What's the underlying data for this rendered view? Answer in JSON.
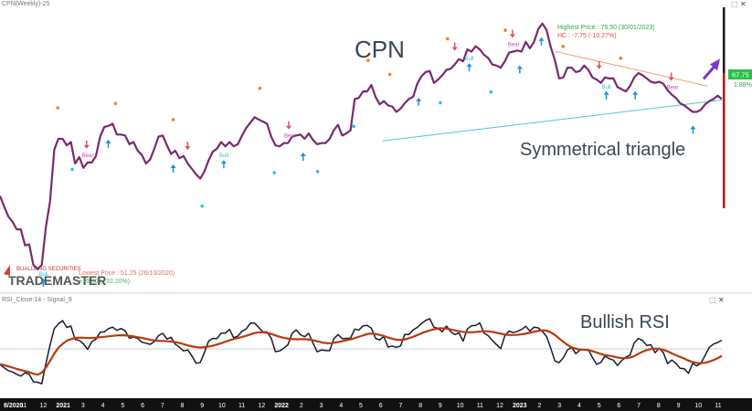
{
  "header": {
    "price_pane_title": "CPN(Weekly)-25",
    "rsi_pane_title": "RSI_Close:14 - Signal_9",
    "price_pane_icons": [
      "maximize-icon",
      "close-icon"
    ],
    "rsi_pane_icons": [
      "maximize-icon",
      "close-icon"
    ]
  },
  "annotations": {
    "ticker": "CPN",
    "pattern": "Symmetrical triangle",
    "rsi_note": "Bullish RSI",
    "highest_price": "Highest Price : 75.50 (30/01/2023)",
    "hc_change": "HC : -7.75 (-10.27%)",
    "lowest_price": "Lowest Price : 51.25 (26/10/2020)",
    "lowest_change": "+16.50 (+32.20%)",
    "current_price": "67.75",
    "current_change": "1.88%",
    "bull_label": "Bull",
    "bear_label": "Bear"
  },
  "watermark": {
    "company": "BUALUANG SECURITIES",
    "product": "TRADEMASTER"
  },
  "colors": {
    "price_line": "#7a2a6b",
    "rsi_line": "#1a1a2e",
    "signal_line": "#b83a0a",
    "support_line": "#4fc3e0",
    "resistance_line": "#f0a070",
    "bull_arrow": "#1e90d8",
    "bear_arrow": "#e05060",
    "bull_dot": "#30c0e0",
    "bear_dot": "#f08030",
    "breakout_arrow": "#7a35c8",
    "last_price_badge": "#2bbf4a",
    "axis_bar": "#111111",
    "right_scale_up": "#1a1a1a",
    "right_scale_down": "#c01010"
  },
  "chart_data": [
    {
      "type": "line",
      "pane": "price",
      "series": [
        {
          "name": "CPN",
          "values": [
            58.5,
            57.5,
            56.6,
            56.1,
            55.4,
            55.4,
            53.9,
            54.0,
            52.1,
            51.7,
            52.1,
            55.6,
            58.0,
            62.8,
            63.8,
            63.8,
            63.2,
            63.5,
            61.5,
            62.1,
            61.1,
            61.6,
            61.6,
            62.2,
            64.0,
            64.9,
            65.0,
            65.2,
            64.2,
            64.2,
            64.1,
            63.3,
            63.5,
            62.7,
            62.3,
            61.5,
            61.9,
            62.9,
            64.0,
            64.1,
            63.2,
            62.4,
            62.7,
            62.0,
            62.2,
            61.5,
            61.0,
            60.5,
            60.1,
            60.8,
            61.8,
            62.6,
            62.9,
            63.5,
            63.1,
            63.5,
            63.1,
            63.3,
            64.1,
            64.8,
            65.3,
            65.8,
            65.6,
            65.4,
            65.2,
            64.0,
            63.2,
            63.1,
            63.4,
            63.4,
            64.0,
            64.1,
            64.2,
            63.8,
            64.3,
            63.7,
            63.3,
            63.4,
            63.4,
            63.8,
            64.6,
            65.1,
            64.1,
            64.3,
            64.6,
            67.5,
            67.6,
            68.2,
            68.2,
            68.8,
            67.7,
            67.0,
            67.3,
            66.9,
            66.8,
            66.3,
            66.6,
            67.1,
            67.5,
            67.7,
            68.9,
            69.6,
            70.0,
            70.1,
            69.0,
            69.3,
            69.7,
            70.2,
            70.3,
            70.7,
            71.2,
            71.0,
            72.1,
            71.9,
            72.4,
            72.1,
            71.6,
            71.3,
            70.7,
            70.6,
            70.4,
            71.0,
            71.8,
            71.9,
            72.0,
            71.9,
            72.8,
            72.2,
            72.8,
            74.0,
            74.5,
            73.9,
            72.3,
            71.1,
            69.4,
            69.5,
            70.4,
            70.4,
            70.0,
            70.1,
            70.6,
            70.2,
            69.5,
            69.3,
            69.0,
            69.5,
            69.4,
            69.4,
            68.6,
            68.4,
            68.2,
            68.7,
            69.5,
            69.9,
            69.7,
            69.4,
            69.1,
            69.0,
            69.1,
            68.9,
            68.3,
            67.9,
            67.6,
            67.1,
            66.9,
            66.6,
            66.3,
            66.3,
            66.5,
            67.0,
            67.3,
            67.5,
            67.8,
            67.5
          ],
          "min": 51.25,
          "max": 75.5
        }
      ],
      "trendlines": [
        {
          "name": "support",
          "from": 0.53,
          "to": 1.0,
          "start": 63.6,
          "end": 67.4
        },
        {
          "name": "resistance",
          "from": 0.77,
          "to": 0.98,
          "start": 71.9,
          "end": 68.7
        }
      ],
      "x_ticks": [
        "8/2020",
        "11",
        "12",
        "2021",
        "3",
        "4",
        "5",
        "6",
        "7",
        "8",
        "9",
        "10",
        "11",
        "12",
        "2022",
        "2",
        "3",
        "4",
        "5",
        "6",
        "7",
        "8",
        "9",
        "10",
        "11",
        "12",
        "2023",
        "2",
        "3",
        "4",
        "5",
        "6",
        "7",
        "8",
        "9",
        "10",
        "11"
      ]
    },
    {
      "type": "line",
      "pane": "rsi",
      "ylim": [
        20,
        80
      ],
      "series": [
        {
          "name": "RSI",
          "values": [
            39.7,
            37.6,
            35.7,
            34.8,
            33.3,
            32.1,
            34.3,
            33.4,
            28.4,
            28.1,
            27.1,
            40.3,
            52.6,
            63.4,
            66.4,
            68.6,
            64.1,
            65.0,
            56.2,
            55.6,
            53.3,
            49.7,
            54.8,
            56.4,
            60.9,
            61.2,
            63.3,
            64.3,
            62.2,
            63.4,
            61.9,
            57.0,
            57.8,
            56.9,
            54.4,
            53.7,
            53.0,
            54.8,
            58.7,
            60.2,
            56.5,
            57.6,
            53.1,
            51.1,
            48.7,
            49.3,
            45.3,
            40.5,
            41.1,
            47.8,
            55.1,
            56.9,
            56.8,
            60.3,
            60.4,
            62.8,
            57.3,
            58.4,
            61.6,
            63.1,
            66.9,
            67.0,
            64.1,
            61.2,
            61.1,
            57.0,
            48.2,
            48.6,
            50.4,
            52.7,
            60.2,
            62.5,
            59.3,
            58.0,
            60.2,
            53.9,
            48.1,
            49.2,
            48.9,
            48.8,
            56.6,
            59.4,
            56.8,
            56.9,
            57.0,
            63.0,
            62.4,
            65.1,
            65.5,
            63.7,
            56.9,
            55.9,
            58.1,
            51.2,
            51.9,
            51.0,
            51.9,
            59.4,
            59.5,
            62.4,
            64.1,
            66.6,
            68.7,
            69.8,
            64.2,
            63.5,
            61.2,
            65.0,
            61.4,
            59.4,
            60.5,
            55.1,
            63.1,
            65.2,
            65.4,
            67.1,
            60.4,
            58.7,
            55.6,
            52.8,
            50.2,
            58.6,
            61.7,
            60.7,
            61.5,
            62.8,
            64.9,
            61.7,
            64.3,
            63.8,
            61.5,
            58.1,
            50.4,
            42.0,
            41.0,
            44.1,
            49.3,
            51.0,
            46.9,
            49.2,
            49.5,
            49.5,
            44.3,
            39.8,
            41.2,
            45.3,
            43.6,
            42.6,
            39.1,
            42.3,
            44.6,
            46.0,
            53.9,
            56.9,
            55.5,
            52.3,
            52.7,
            47.5,
            50.5,
            47.4,
            40.3,
            42.7,
            40.5,
            37.2,
            36.9,
            34.0,
            40.4,
            38.9,
            40.6,
            45.8,
            51.0,
            53.2,
            54.2,
            55.7
          ]
        },
        {
          "name": "Signal",
          "values": [
            40.0,
            39.3,
            38.5,
            37.7,
            36.8,
            36.1,
            35.4,
            34.7,
            33.6,
            33.1,
            34.4,
            38.0,
            42.4,
            47.2,
            51.0,
            53.5,
            55.5,
            56.5,
            57.2,
            57.4,
            57.3,
            57.1,
            57.2,
            57.4,
            57.7,
            58.0,
            58.3,
            58.6,
            58.9,
            59.0,
            58.8,
            58.5,
            58.1,
            57.6,
            57.1,
            56.5,
            55.9,
            55.5,
            55.3,
            55.2,
            55.0,
            54.7,
            54.3,
            53.7,
            52.9,
            52.1,
            51.5,
            51.1,
            50.9,
            51.2,
            51.7,
            52.3,
            53.1,
            54.0,
            55.0,
            55.9,
            56.7,
            57.3,
            58.1,
            58.9,
            59.9,
            60.6,
            60.9,
            60.8,
            60.3,
            59.5,
            58.5,
            57.7,
            57.0,
            56.6,
            56.4,
            56.3,
            56.4,
            56.3,
            56.0,
            55.4,
            54.7,
            54.1,
            53.7,
            53.8,
            54.2,
            54.7,
            55.4,
            56.0,
            56.6,
            57.5,
            58.4,
            59.3,
            60.0,
            60.0,
            59.5,
            58.8,
            57.9,
            57.0,
            56.3,
            55.9,
            56.0,
            56.6,
            57.5,
            58.6,
            59.8,
            60.9,
            61.8,
            62.6,
            63.2,
            63.6,
            63.4,
            63.0,
            62.4,
            61.8,
            61.3,
            60.9,
            60.9,
            61.0,
            61.3,
            61.6,
            61.6,
            61.3,
            60.8,
            60.2,
            59.6,
            59.2,
            59.1,
            59.2,
            59.5,
            59.9,
            60.5,
            61.1,
            61.7,
            62.2,
            62.1,
            61.2,
            59.6,
            57.4,
            55.1,
            53.0,
            51.3,
            50.3,
            49.7,
            49.5,
            49.2,
            48.7,
            47.8,
            46.8,
            46.0,
            45.6,
            45.1,
            44.4,
            44.0,
            43.9,
            44.2,
            45.1,
            46.6,
            48.0,
            49.1,
            49.8,
            50.2,
            50.0,
            49.5,
            48.5,
            47.2,
            46.0,
            44.8,
            43.7,
            42.4,
            41.4,
            40.8,
            40.6,
            40.9,
            41.6,
            42.6,
            43.8,
            45.5
          ]
        }
      ],
      "x_ticks": [
        "8/2020",
        "11",
        "12",
        "2021",
        "3",
        "4",
        "5",
        "6",
        "7",
        "8",
        "9",
        "10",
        "11",
        "12",
        "2022",
        "2",
        "3",
        "4",
        "5",
        "6",
        "7",
        "8",
        "9",
        "10",
        "11",
        "12",
        "2023",
        "2",
        "3",
        "4",
        "5",
        "6",
        "7",
        "8",
        "9",
        "10",
        "11"
      ]
    }
  ],
  "markers": {
    "bull_arrows": [
      0.06,
      0.15,
      0.24,
      0.31,
      0.42,
      0.58,
      0.65,
      0.72,
      0.75,
      0.84,
      0.88,
      0.96
    ],
    "bear_arrows": [
      0.12,
      0.26,
      0.4,
      0.63,
      0.71,
      0.83,
      0.93
    ],
    "bull_dots": [
      0.1,
      0.28,
      0.38,
      0.44,
      0.49,
      0.61,
      0.68
    ],
    "bear_dots": [
      0.08,
      0.16,
      0.24,
      0.36,
      0.51,
      0.54,
      0.62,
      0.7,
      0.78,
      0.86
    ]
  }
}
